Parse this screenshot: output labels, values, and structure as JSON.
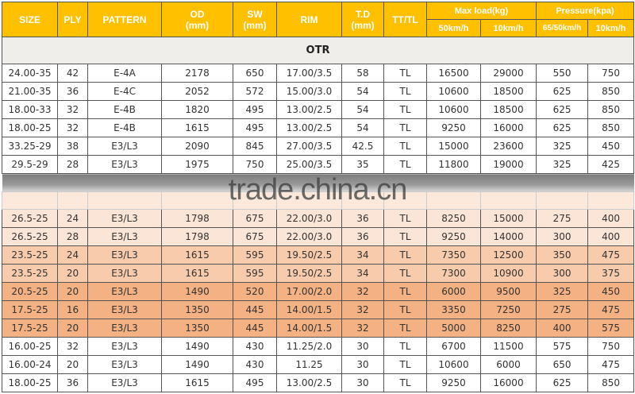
{
  "headers": {
    "size": "SIZE",
    "ply": "PLY",
    "pattern": "PATTERN",
    "od": "OD",
    "od_unit": "(mm)",
    "sw": "SW",
    "sw_unit": "(mm)",
    "rim": "RIM",
    "td": "T.D",
    "td_unit": "(mm)",
    "tt": "TT/TL",
    "max_load": "Max load(kg)",
    "pressure": "Pressure(kpa)",
    "load_50": "50km/h",
    "load_10": "10km/h",
    "press_65": "65/50km/h",
    "press_10": "10km/h"
  },
  "section": "OTR",
  "watermark": "trade.china.cn",
  "colors": {
    "header": "#ffc000",
    "light_peach": "#fbe5d6",
    "peach": "#f8cbad",
    "orange": "#f4b183"
  },
  "rows_top": [
    [
      "24.00-35",
      "42",
      "E-4A",
      "2178",
      "650",
      "17.00/3.5",
      "58",
      "TL",
      "16500",
      "29000",
      "550",
      "750"
    ],
    [
      "21.00-35",
      "36",
      "E-4C",
      "2052",
      "572",
      "15.00/3.0",
      "54",
      "TL",
      "10600",
      "18500",
      "625",
      "850"
    ],
    [
      "18.00-33",
      "32",
      "E-4B",
      "1820",
      "495",
      "13.00/2.5",
      "54",
      "TL",
      "10600",
      "18500",
      "625",
      "850"
    ],
    [
      "18.00-25",
      "32",
      "E-4B",
      "1615",
      "495",
      "13.00/2.5",
      "54",
      "TL",
      "9250",
      "16000",
      "625",
      "850"
    ],
    [
      "33.25-29",
      "38",
      "E3/L3",
      "2090",
      "845",
      "27.00/3.5",
      "42.5",
      "TL",
      "15000",
      "23600",
      "325",
      "450"
    ],
    [
      "29.5-29",
      "28",
      "E3/L3",
      "1975",
      "750",
      "25.00/3.5",
      "35",
      "TL",
      "11800",
      "19000",
      "325",
      "425"
    ]
  ],
  "rows_bottom": [
    [
      "26.5-25",
      "24",
      "E3/L3",
      "1798",
      "675",
      "22.00/3.0",
      "36",
      "TL",
      "8250",
      "15000",
      "275",
      "400"
    ],
    [
      "26.5-25",
      "28",
      "E3/L3",
      "1798",
      "675",
      "22.00/3.0",
      "36",
      "TL",
      "9250",
      "14000",
      "300",
      "400"
    ],
    [
      "23.5-25",
      "24",
      "E3/L3",
      "1615",
      "595",
      "19.50/2.5",
      "34",
      "TL",
      "7350",
      "12500",
      "350",
      "475"
    ],
    [
      "23.5-25",
      "20",
      "E3/L3",
      "1615",
      "595",
      "19.50/2.5",
      "34",
      "TL",
      "7300",
      "10900",
      "300",
      "375"
    ],
    [
      "20.5-25",
      "20",
      "E3/L3",
      "1490",
      "520",
      "17.00/2.0",
      "32",
      "TL",
      "6000",
      "9500",
      "325",
      "450"
    ],
    [
      "17.5-25",
      "16",
      "E3/L3",
      "1350",
      "445",
      "14.00/1.5",
      "32",
      "TL",
      "3350",
      "7250",
      "275",
      "475"
    ],
    [
      "17.5-25",
      "20",
      "E3/L3",
      "1350",
      "445",
      "14.00/1.5",
      "32",
      "TL",
      "5000",
      "8250",
      "400",
      "575"
    ],
    [
      "16.00-25",
      "32",
      "E3/L3",
      "1490",
      "430",
      "11.25/2.0",
      "30",
      "TL",
      "6700",
      "11500",
      "575",
      "750"
    ],
    [
      "16.00-24",
      "20",
      "E3/L3",
      "1490",
      "430",
      "11.25",
      "30",
      "TL",
      "10600",
      "6000",
      "650",
      "475"
    ],
    [
      "18.00-25",
      "36",
      "E3/L3",
      "1615",
      "495",
      "13.00/2.5",
      "30",
      "TL",
      "9250",
      "16000",
      "625",
      "850"
    ]
  ]
}
